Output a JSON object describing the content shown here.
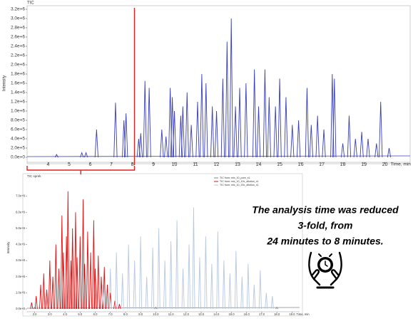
{
  "chart_data": [
    {
      "type": "stem",
      "title": "TIC",
      "y_label": "Intensity",
      "x_label": "Time, min",
      "xlim": [
        3.0,
        21.2
      ],
      "xticks": [
        4,
        5,
        6,
        7,
        8,
        9,
        10,
        11,
        12,
        13,
        14,
        15,
        16,
        17,
        18,
        19,
        20
      ],
      "ylim": [
        0,
        3200000
      ],
      "yticks": [
        {
          "value": 0,
          "label": "0.0e+0"
        },
        {
          "value": 200000,
          "label": "2.0e+5"
        },
        {
          "value": 400000,
          "label": "4.0e+5"
        },
        {
          "value": 600000,
          "label": "6.0e+5"
        },
        {
          "value": 800000,
          "label": "8.0e+5"
        },
        {
          "value": 1000000,
          "label": "1.0e+6"
        },
        {
          "value": 1200000,
          "label": "1.2e+6"
        },
        {
          "value": 1400000,
          "label": "1.4e+6"
        },
        {
          "value": 1600000,
          "label": "1.6e+6"
        },
        {
          "value": 1800000,
          "label": "1.8e+6"
        },
        {
          "value": 2000000,
          "label": "2.0e+6"
        },
        {
          "value": 2200000,
          "label": "2.2e+6"
        },
        {
          "value": 2400000,
          "label": "2.4e+6"
        },
        {
          "value": 2600000,
          "label": "2.6e+6"
        },
        {
          "value": 2800000,
          "label": "2.8e+6"
        },
        {
          "value": 3000000,
          "label": "3.0e+6"
        },
        {
          "value": 3200000,
          "label": "3.2e+6"
        }
      ],
      "cutoff_x": 8.1,
      "cutoff_color": "#e02020",
      "series": [
        {
          "color": "#3a3fb8",
          "x": [
            4.4,
            5.6,
            5.8,
            6.3,
            7.2,
            7.6,
            7.7,
            8.3,
            8.4,
            8.6,
            8.8,
            9.4,
            9.6,
            9.8,
            9.9,
            10.0,
            10.3,
            10.4,
            10.6,
            10.8,
            11.1,
            11.3,
            11.5,
            11.8,
            12.0,
            12.3,
            12.5,
            12.7,
            12.9,
            13.1,
            13.4,
            13.8,
            14.0,
            14.3,
            14.5,
            14.8,
            15.0,
            15.3,
            15.6,
            15.9,
            16.3,
            16.5,
            16.8,
            17.1,
            17.5,
            17.6,
            18.0,
            18.3,
            18.6,
            18.9,
            19.2,
            19.6,
            19.8,
            20.2
          ],
          "values": [
            60000,
            100000,
            100000,
            600000,
            1180000,
            800000,
            950000,
            400000,
            520000,
            1650000,
            1500000,
            600000,
            450000,
            1500000,
            1300000,
            1000000,
            900000,
            1100000,
            1400000,
            700000,
            1200000,
            1800000,
            1600000,
            1100000,
            1000000,
            1700000,
            2500000,
            3000000,
            1100000,
            1500000,
            1600000,
            1900000,
            1100000,
            1900000,
            1300000,
            1100000,
            1700000,
            1300000,
            700000,
            800000,
            1500000,
            700000,
            900000,
            600000,
            1800000,
            1700000,
            300000,
            900000,
            400000,
            550000,
            400000,
            300000,
            1200000,
            200000
          ]
        }
      ]
    },
    {
      "type": "stem",
      "title": "TIC sprek",
      "y_label": "Intensity",
      "x_label": "Time, min",
      "xlim": [
        1.5,
        19.5
      ],
      "xticks": [
        {
          "value": 2,
          "label": "2.0"
        },
        {
          "value": 3,
          "label": "3.0"
        },
        {
          "value": 4,
          "label": "4.0"
        },
        {
          "value": 5,
          "label": "5.0"
        },
        {
          "value": 6,
          "label": "6.0"
        },
        {
          "value": 7,
          "label": "7.0"
        },
        {
          "value": 8,
          "label": "8.0"
        },
        {
          "value": 9,
          "label": "9.0"
        },
        {
          "value": 10,
          "label": "10.0"
        },
        {
          "value": 11,
          "label": "11.0"
        },
        {
          "value": 12,
          "label": "12.0"
        },
        {
          "value": 13,
          "label": "13.0"
        },
        {
          "value": 14,
          "label": "14.0"
        },
        {
          "value": 15,
          "label": "15.0"
        },
        {
          "value": 16,
          "label": "16.0"
        },
        {
          "value": 17,
          "label": "17.0"
        },
        {
          "value": 18,
          "label": "18.0"
        },
        {
          "value": 19,
          "label": "19.0"
        }
      ],
      "ylim": [
        0,
        7600000
      ],
      "yticks": [
        {
          "value": 0,
          "label": "0.0e+0"
        },
        {
          "value": 1000000,
          "label": "1.0e+6"
        },
        {
          "value": 2000000,
          "label": "2.0e+6"
        },
        {
          "value": 3000000,
          "label": "3.0e+6"
        },
        {
          "value": 4000000,
          "label": "4.0e+6"
        },
        {
          "value": 5000000,
          "label": "5.0e+6"
        },
        {
          "value": 6000000,
          "label": "6.0e+6"
        },
        {
          "value": 7000000,
          "label": "7.0e+6"
        }
      ],
      "series": [
        {
          "name": "TIC from: mix_10_pure_x1",
          "color": "#808890",
          "x": [
            2.0,
            10.0,
            18.0
          ],
          "values": [
            100000,
            100000,
            100000
          ]
        },
        {
          "name": "TIC from: mix_10_10x_dilution_x1",
          "color": "#e01010",
          "x": [
            1.8,
            2.1,
            2.4,
            2.6,
            2.8,
            3.0,
            3.2,
            3.4,
            3.6,
            3.8,
            3.9,
            4.1,
            4.2,
            4.4,
            4.5,
            4.7,
            4.8,
            5.0,
            5.2,
            5.3,
            5.5,
            5.7,
            5.9,
            6.0,
            6.2,
            6.4,
            6.6,
            6.8,
            7.0,
            7.3,
            7.6
          ],
          "values": [
            400000,
            800000,
            1500000,
            2200000,
            1200000,
            3000000,
            2000000,
            4000000,
            2500000,
            5800000,
            3500000,
            4500000,
            7300000,
            3000000,
            5000000,
            6000000,
            3200000,
            4500000,
            6800000,
            2800000,
            4800000,
            3500000,
            5500000,
            2500000,
            3300000,
            2000000,
            2600000,
            1500000,
            1000000,
            500000,
            300000
          ]
        },
        {
          "name": "TIC from: mix_10_20x_dilution_x1",
          "color": "#b8c8e0",
          "x": [
            6.5,
            7.0,
            7.4,
            7.8,
            8.2,
            8.6,
            9.0,
            9.4,
            9.8,
            10.2,
            10.6,
            11.0,
            11.4,
            11.8,
            12.2,
            12.5,
            12.9,
            13.3,
            13.7,
            14.1,
            14.5,
            14.9,
            15.3,
            15.7,
            16.1,
            16.5,
            16.9,
            17.3,
            17.7
          ],
          "values": [
            1500000,
            2500000,
            3500000,
            2200000,
            4000000,
            3000000,
            4500000,
            2000000,
            3800000,
            5000000,
            3000000,
            4200000,
            5500000,
            2500000,
            4000000,
            6300000,
            3200000,
            4500000,
            2800000,
            4800000,
            3000000,
            2200000,
            3600000,
            2000000,
            2800000,
            1500000,
            2400000,
            1000000,
            800000
          ]
        }
      ]
    }
  ],
  "note_lines": [
    "The analysis time was reduced",
    "3-fold, from",
    "24 minutes to 8 minutes."
  ]
}
